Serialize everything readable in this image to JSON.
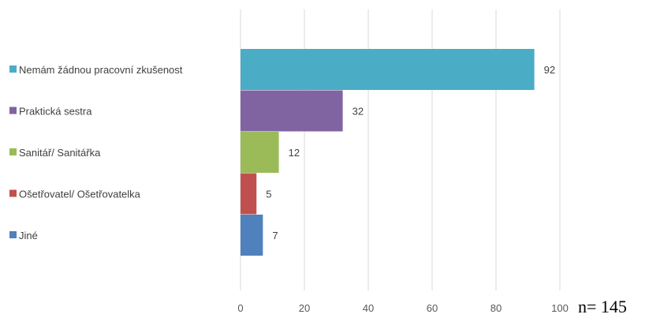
{
  "chart_data": {
    "type": "bar",
    "orientation": "horizontal",
    "categories": [
      "Nemám žádnou pracovní zkušenost",
      "Praktická sestra",
      "Sanitář/ Sanitářka",
      "Ošetřovatel/ Ošetřovatelka",
      "Jiné"
    ],
    "values": [
      92,
      32,
      12,
      5,
      7
    ],
    "colors": [
      "#4bacc6",
      "#8064a2",
      "#9bbb59",
      "#c0504d",
      "#4f81bd"
    ],
    "xlim": [
      0,
      100
    ],
    "xticks": [
      0,
      20,
      40,
      60,
      80,
      100
    ],
    "grid": true,
    "legend_placement": "left",
    "note": "n= 145"
  }
}
